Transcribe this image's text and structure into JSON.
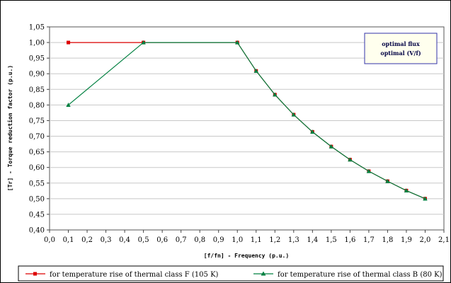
{
  "chart_data": {
    "type": "line",
    "xlabel": "[f/fn] - Frequency (p.u.)",
    "ylabel": "[Tr] - Torque reduction factor (p.u.)",
    "xlim": [
      0.0,
      2.1
    ],
    "ylim": [
      0.4,
      1.05
    ],
    "x_ticks": [
      "0,0",
      "0,1",
      "0,2",
      "0,3",
      "0,4",
      "0,5",
      "0,6",
      "0,7",
      "0,8",
      "0,9",
      "1,0",
      "1,1",
      "1,2",
      "1,3",
      "1,4",
      "1,5",
      "1,6",
      "1,7",
      "1,8",
      "1,9",
      "2,0",
      "2,1"
    ],
    "y_ticks": [
      "0,40",
      "0,45",
      "0,50",
      "0,55",
      "0,60",
      "0,65",
      "0,70",
      "0,75",
      "0,80",
      "0,85",
      "0,90",
      "0,95",
      "1,00",
      "1,05"
    ],
    "grid": "horizontal",
    "annotation": [
      "optimal flux",
      "optimal (V/f)"
    ],
    "legend_position": "bottom",
    "series": [
      {
        "name": "for temperature rise of thermal class F (105 K)",
        "color": "#dd0000",
        "marker": "square",
        "x": [
          0.1,
          0.5,
          1.0,
          1.1,
          1.2,
          1.3,
          1.4,
          1.5,
          1.6,
          1.7,
          1.8,
          1.9,
          2.0
        ],
        "y": [
          1.0,
          1.0,
          1.0,
          0.909,
          0.833,
          0.769,
          0.714,
          0.667,
          0.625,
          0.588,
          0.556,
          0.526,
          0.5
        ]
      },
      {
        "name": "for temperature rise of thermal class B (80 K)",
        "color": "#008040",
        "marker": "triangle",
        "x": [
          0.1,
          0.5,
          1.0,
          1.1,
          1.2,
          1.3,
          1.4,
          1.5,
          1.6,
          1.7,
          1.8,
          1.9,
          2.0
        ],
        "y": [
          0.8,
          1.0,
          1.0,
          0.909,
          0.833,
          0.769,
          0.714,
          0.667,
          0.625,
          0.588,
          0.556,
          0.526,
          0.5
        ]
      }
    ]
  }
}
